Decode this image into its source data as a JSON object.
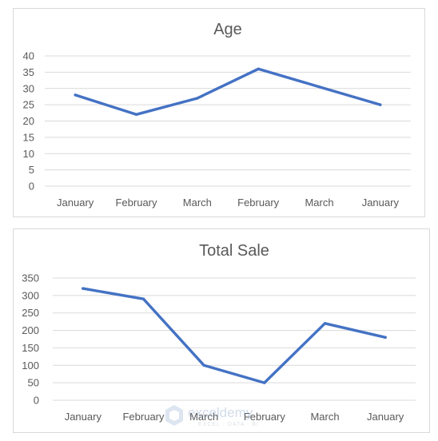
{
  "chart_data": [
    {
      "type": "line",
      "title": "Age",
      "categories": [
        "January",
        "February",
        "March",
        "February",
        "March",
        "January"
      ],
      "series": [
        {
          "values": [
            28,
            22,
            27,
            36,
            30.5,
            25
          ]
        }
      ],
      "ylim": [
        0,
        40
      ],
      "yticks": [
        0,
        5,
        10,
        15,
        20,
        25,
        30,
        35,
        40
      ],
      "grid": true,
      "colors": {
        "line": "#4472c4",
        "grid": "#d9d9d9",
        "text": "#595959"
      }
    },
    {
      "type": "line",
      "title": "Total Sale",
      "categories": [
        "January",
        "February",
        "March",
        "February",
        "March",
        "January"
      ],
      "series": [
        {
          "values": [
            320,
            290,
            100,
            50,
            220,
            180
          ]
        }
      ],
      "ylim": [
        0,
        350
      ],
      "yticks": [
        0,
        50,
        100,
        150,
        200,
        250,
        300,
        350
      ],
      "grid": true,
      "colors": {
        "line": "#4472c4",
        "grid": "#d9d9d9",
        "text": "#595959"
      }
    }
  ],
  "watermark": {
    "name": "exceldemy",
    "tagline": "EXCEL · DATA · BI"
  }
}
